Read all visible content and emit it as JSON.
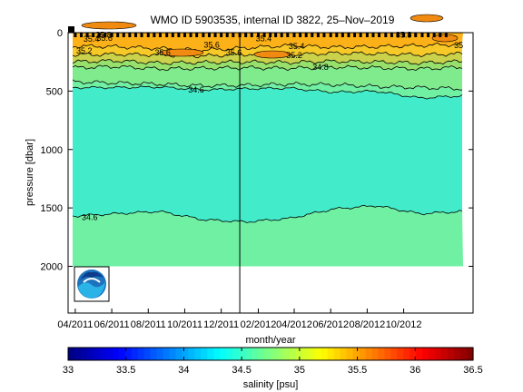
{
  "chart_data": {
    "type": "heatmap",
    "title": "WMO ID 5903535, internal ID 3822, 25–Nov–2019",
    "xlabel": "month/year",
    "ylabel": "pressure [dbar]",
    "x_range": [
      "2011-03-20",
      "2013-01-25"
    ],
    "ylim": [
      2400,
      0
    ],
    "y_ticks": [
      0,
      500,
      1000,
      1500,
      2000
    ],
    "x_ticks": [
      "04/2011",
      "06/2011",
      "08/2011",
      "10/2011",
      "12/2011",
      "02/2012",
      "04/2012",
      "06/2012",
      "08/2012",
      "10/2012"
    ],
    "profile_dates": [
      "2011-04-01",
      "2011-04-11",
      "2011-04-21",
      "2011-05-01",
      "2011-05-11",
      "2011-05-21",
      "2011-06-01",
      "2011-06-11",
      "2011-06-21",
      "2011-07-01",
      "2011-07-11",
      "2011-07-21",
      "2011-08-01",
      "2011-08-11",
      "2011-08-21",
      "2011-09-01",
      "2011-09-11",
      "2011-09-21",
      "2011-10-01",
      "2011-10-11",
      "2011-10-21",
      "2011-11-01",
      "2011-11-11",
      "2011-11-21",
      "2011-12-01",
      "2011-12-11",
      "2011-12-21",
      "2012-01-01",
      "2012-01-11",
      "2012-01-21",
      "2012-02-01",
      "2012-02-11",
      "2012-02-21",
      "2012-03-01",
      "2012-03-11",
      "2012-03-21",
      "2012-04-01",
      "2012-04-11",
      "2012-04-21",
      "2012-05-01",
      "2012-05-11",
      "2012-05-21",
      "2012-06-01",
      "2012-06-11",
      "2012-06-21",
      "2012-07-01",
      "2012-07-11",
      "2012-07-21",
      "2012-08-01",
      "2012-08-11",
      "2012-08-21",
      "2012-09-01",
      "2012-09-11",
      "2012-09-21",
      "2012-10-01",
      "2012-10-11",
      "2012-10-21",
      "2012-11-01",
      "2012-11-11",
      "2012-11-21",
      "2012-12-01",
      "2012-12-11"
    ],
    "vertical_marker_date": "2012-01-01",
    "colorbar": {
      "label": "salinity [psu]",
      "min": 33,
      "max": 36.5,
      "ticks": [
        33,
        33.5,
        34,
        34.5,
        35,
        35.5,
        36,
        36.5
      ],
      "ticks_text": [
        "33",
        "33.5",
        "34",
        "34.5",
        "35",
        "35.5",
        "36",
        "36.5"
      ]
    },
    "layers": [
      {
        "name": "35.6+",
        "salinity": 35.7,
        "color": "#fbb117",
        "top": [
          0,
          0,
          0,
          0,
          0,
          0,
          0,
          0,
          0,
          0
        ],
        "bottom": [
          115,
          120,
          135,
          150,
          130,
          110,
          125,
          120,
          110,
          100
        ]
      },
      {
        "name": "35.4-35.6",
        "salinity": 35.5,
        "color": "#f6c928",
        "top": [
          115,
          120,
          135,
          150,
          130,
          110,
          125,
          120,
          110,
          100
        ],
        "bottom": [
          190,
          185,
          190,
          200,
          185,
          190,
          175,
          180,
          190,
          180
        ]
      },
      {
        "name": "35.2-35.4",
        "salinity": 35.3,
        "color": "#c9d24a",
        "top": [
          190,
          185,
          190,
          200,
          185,
          190,
          175,
          180,
          190,
          180
        ],
        "bottom": [
          250,
          240,
          260,
          255,
          250,
          255,
          245,
          250,
          260,
          245
        ]
      },
      {
        "name": "35.0-35.2",
        "salinity": 35.1,
        "color": "#96e06b",
        "top": [
          250,
          240,
          260,
          255,
          250,
          255,
          245,
          250,
          260,
          245
        ],
        "bottom": [
          300,
          290,
          310,
          305,
          300,
          305,
          295,
          300,
          310,
          295
        ]
      },
      {
        "name": "34.8-35.0",
        "salinity": 34.9,
        "color": "#7feb8d",
        "top": [
          300,
          290,
          310,
          305,
          300,
          305,
          295,
          300,
          310,
          295
        ],
        "bottom": [
          420,
          430,
          440,
          455,
          450,
          440,
          445,
          460,
          470,
          480
        ]
      },
      {
        "name": "34.6-34.8",
        "salinity": 34.7,
        "color": "#70f0a3",
        "top": [
          420,
          430,
          440,
          455,
          450,
          440,
          445,
          460,
          470,
          480
        ],
        "bottom": [
          470,
          470,
          465,
          490,
          480,
          475,
          510,
          500,
          560,
          540
        ]
      },
      {
        "name": "34.5-34.6",
        "salinity": 34.55,
        "color": "#42ecca",
        "top": [
          470,
          470,
          465,
          490,
          480,
          475,
          510,
          500,
          560,
          540
        ],
        "bottom": [
          1570,
          1550,
          1530,
          1600,
          1620,
          1590,
          1510,
          1480,
          1550,
          1530
        ]
      },
      {
        "name": "34.6-34.8 deep",
        "salinity": 34.7,
        "color": "#70f0a3",
        "top": [
          1570,
          1550,
          1530,
          1600,
          1620,
          1590,
          1510,
          1480,
          1550,
          1530
        ],
        "bottom": [
          2000,
          2000,
          2000,
          2000,
          2000,
          2000,
          2000,
          2000,
          2000,
          2000
        ]
      }
    ],
    "contour_labels": [
      {
        "text": "35.8",
        "date": "2011-05-18",
        "p": 18
      },
      {
        "text": "35.4",
        "date": "2011-04-28",
        "p": 55
      },
      {
        "text": "35.6",
        "date": "2011-05-20",
        "p": 45
      },
      {
        "text": "35.2",
        "date": "2011-04-16",
        "p": 155
      },
      {
        "text": "35.6",
        "date": "2011-08-25",
        "p": 170
      },
      {
        "text": "35.6",
        "date": "2011-11-15",
        "p": 105
      },
      {
        "text": "35.6",
        "date": "2011-12-22",
        "p": 170
      },
      {
        "text": "35.4",
        "date": "2012-02-10",
        "p": 50
      },
      {
        "text": "35.4",
        "date": "2012-04-05",
        "p": 115
      },
      {
        "text": "35.2",
        "date": "2012-04-01",
        "p": 195
      },
      {
        "text": "34.8",
        "date": "2012-05-15",
        "p": 295
      },
      {
        "text": "34.6",
        "date": "2011-10-20",
        "p": 490
      },
      {
        "text": "34.6",
        "date": "2011-04-25",
        "p": 1580
      },
      {
        "text": "35.8",
        "date": "2012-10-01",
        "p": 20
      },
      {
        "text": "35",
        "date": "2013-01-01",
        "p": 110
      }
    ]
  }
}
